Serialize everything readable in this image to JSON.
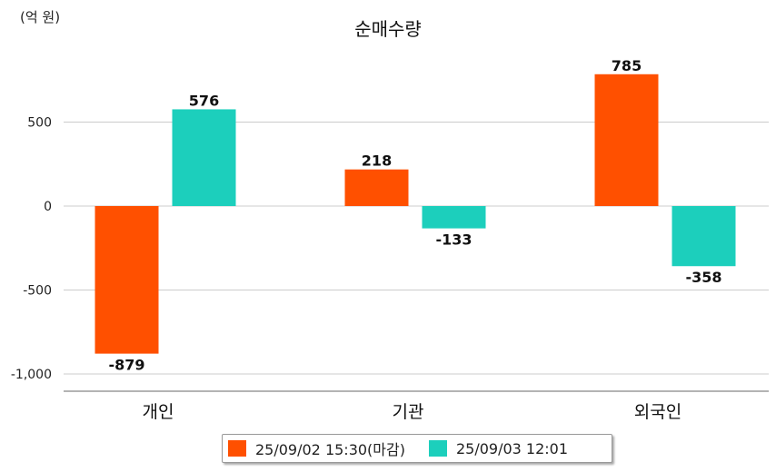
{
  "unit_label": "(억 원)",
  "chart_data": {
    "type": "bar",
    "title": "순매수량",
    "categories": [
      "개인",
      "기관",
      "외국인"
    ],
    "series": [
      {
        "name": "25/09/02 15:30(마감)",
        "color": "#ff5000",
        "values": [
          -879,
          218,
          785
        ]
      },
      {
        "name": "25/09/03 12:01",
        "color": "#1ccfbc",
        "values": [
          576,
          -133,
          -358
        ]
      }
    ],
    "yticks": [
      500,
      0,
      -500,
      -1000
    ],
    "ytick_labels": [
      "500",
      "0",
      "-500",
      "-1,000"
    ],
    "ylim": [
      -1100,
      1000
    ],
    "grid": true,
    "legend": "bottom"
  }
}
